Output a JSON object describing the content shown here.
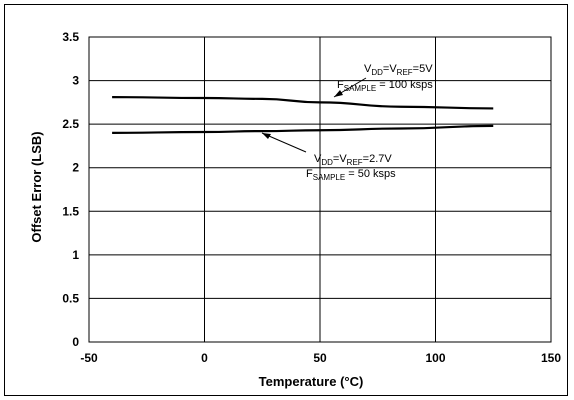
{
  "chart_data": {
    "type": "line",
    "title": "",
    "xlabel": "Temperature (°C)",
    "ylabel": "Offset Error (LSB)",
    "xlim": [
      -50,
      150
    ],
    "ylim": [
      0,
      3.5
    ],
    "x_ticks": [
      "-50",
      "0",
      "50",
      "100",
      "150"
    ],
    "y_ticks": [
      "0",
      "0.5",
      "1",
      "1.5",
      "2",
      "2.5",
      "3",
      "3.5"
    ],
    "grid": true,
    "series": [
      {
        "label_lines": [
          {
            "main": "V",
            "sub": "DD",
            "rest": "=V",
            "sub2": "REF",
            "rest2": "=5V"
          },
          {
            "main": "F",
            "sub": "SAMPLE",
            "rest": " = 100 ksps"
          }
        ],
        "x": [
          -40,
          0,
          25,
          50,
          85,
          125
        ],
        "y": [
          2.81,
          2.8,
          2.79,
          2.75,
          2.7,
          2.68
        ]
      },
      {
        "label_lines": [
          {
            "main": "V",
            "sub": "DD",
            "rest": "=V",
            "sub2": "REF",
            "rest2": "=2.7V"
          },
          {
            "main": "F",
            "sub": "SAMPLE",
            "rest": " = 50 ksps"
          }
        ],
        "x": [
          -40,
          0,
          25,
          50,
          85,
          125
        ],
        "y": [
          2.4,
          2.41,
          2.42,
          2.43,
          2.45,
          2.48
        ]
      }
    ]
  }
}
